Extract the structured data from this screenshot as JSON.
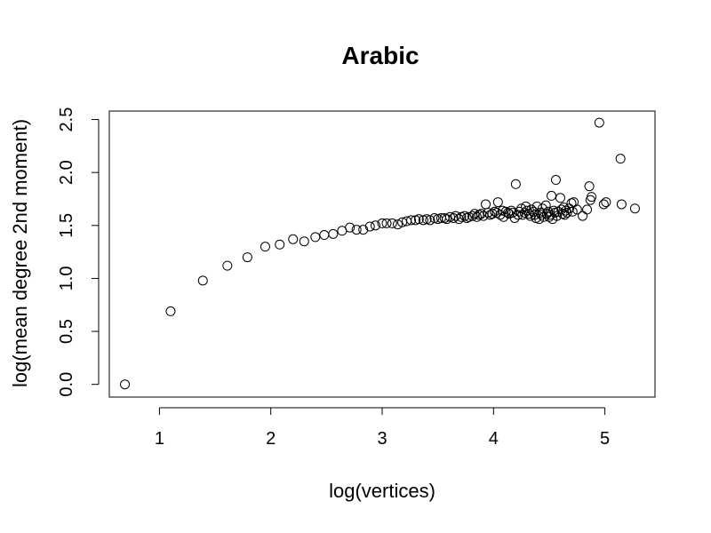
{
  "chart_data": {
    "type": "scatter",
    "title": "Arabic",
    "xlabel": "log(vertices)",
    "ylabel": "log(mean degree 2nd moment)",
    "xlim": [
      0.55,
      5.45
    ],
    "ylim": [
      -0.12,
      2.58
    ],
    "xticks": [
      1,
      2,
      3,
      4,
      5
    ],
    "yticks": [
      0.0,
      0.5,
      1.0,
      1.5,
      2.0,
      2.5
    ],
    "xtick_labels": [
      "1",
      "2",
      "3",
      "4",
      "5"
    ],
    "ytick_labels": [
      "0.0",
      "0.5",
      "1.0",
      "1.5",
      "2.0",
      "2.5"
    ],
    "grid": false,
    "points": [
      [
        0.69,
        0.0
      ],
      [
        1.1,
        0.69
      ],
      [
        1.39,
        0.98
      ],
      [
        1.61,
        1.12
      ],
      [
        1.79,
        1.2
      ],
      [
        1.95,
        1.3
      ],
      [
        2.08,
        1.32
      ],
      [
        2.2,
        1.37
      ],
      [
        2.3,
        1.35
      ],
      [
        2.4,
        1.39
      ],
      [
        2.48,
        1.41
      ],
      [
        2.56,
        1.42
      ],
      [
        2.64,
        1.45
      ],
      [
        2.71,
        1.48
      ],
      [
        2.77,
        1.46
      ],
      [
        2.83,
        1.46
      ],
      [
        2.89,
        1.49
      ],
      [
        2.94,
        1.5
      ],
      [
        3.0,
        1.52
      ],
      [
        3.04,
        1.52
      ],
      [
        3.09,
        1.52
      ],
      [
        3.14,
        1.51
      ],
      [
        3.18,
        1.53
      ],
      [
        3.22,
        1.54
      ],
      [
        3.26,
        1.55
      ],
      [
        3.3,
        1.55
      ],
      [
        3.33,
        1.56
      ],
      [
        3.37,
        1.55
      ],
      [
        3.4,
        1.56
      ],
      [
        3.43,
        1.55
      ],
      [
        3.47,
        1.57
      ],
      [
        3.5,
        1.56
      ],
      [
        3.53,
        1.57
      ],
      [
        3.56,
        1.57
      ],
      [
        3.58,
        1.56
      ],
      [
        3.61,
        1.58
      ],
      [
        3.64,
        1.57
      ],
      [
        3.66,
        1.59
      ],
      [
        3.69,
        1.56
      ],
      [
        3.71,
        1.58
      ],
      [
        3.74,
        1.59
      ],
      [
        3.76,
        1.57
      ],
      [
        3.78,
        1.58
      ],
      [
        3.81,
        1.59
      ],
      [
        3.83,
        1.61
      ],
      [
        3.85,
        1.58
      ],
      [
        3.87,
        1.6
      ],
      [
        3.89,
        1.61
      ],
      [
        3.91,
        1.59
      ],
      [
        3.93,
        1.7
      ],
      [
        3.95,
        1.62
      ],
      [
        3.97,
        1.6
      ],
      [
        3.99,
        1.61
      ],
      [
        4.01,
        1.63
      ],
      [
        4.03,
        1.62
      ],
      [
        4.04,
        1.72
      ],
      [
        4.06,
        1.6
      ],
      [
        4.08,
        1.64
      ],
      [
        4.09,
        1.58
      ],
      [
        4.11,
        1.63
      ],
      [
        4.13,
        1.62
      ],
      [
        4.14,
        1.61
      ],
      [
        4.16,
        1.64
      ],
      [
        4.17,
        1.62
      ],
      [
        4.19,
        1.57
      ],
      [
        4.2,
        1.89
      ],
      [
        4.22,
        1.6
      ],
      [
        4.23,
        1.63
      ],
      [
        4.25,
        1.66
      ],
      [
        4.26,
        1.6
      ],
      [
        4.28,
        1.62
      ],
      [
        4.29,
        1.68
      ],
      [
        4.3,
        1.64
      ],
      [
        4.32,
        1.61
      ],
      [
        4.33,
        1.59
      ],
      [
        4.34,
        1.65
      ],
      [
        4.36,
        1.63
      ],
      [
        4.37,
        1.6
      ],
      [
        4.38,
        1.57
      ],
      [
        4.39,
        1.68
      ],
      [
        4.41,
        1.56
      ],
      [
        4.42,
        1.62
      ],
      [
        4.43,
        1.6
      ],
      [
        4.44,
        1.66
      ],
      [
        4.45,
        1.58
      ],
      [
        4.47,
        1.69
      ],
      [
        4.48,
        1.61
      ],
      [
        4.49,
        1.63
      ],
      [
        4.5,
        1.58
      ],
      [
        4.51,
        1.6
      ],
      [
        4.52,
        1.78
      ],
      [
        4.53,
        1.56
      ],
      [
        4.54,
        1.64
      ],
      [
        4.55,
        1.62
      ],
      [
        4.56,
        1.93
      ],
      [
        4.57,
        1.59
      ],
      [
        4.58,
        1.63
      ],
      [
        4.6,
        1.76
      ],
      [
        4.61,
        1.65
      ],
      [
        4.62,
        1.61
      ],
      [
        4.63,
        1.67
      ],
      [
        4.64,
        1.6
      ],
      [
        4.65,
        1.64
      ],
      [
        4.66,
        1.62
      ],
      [
        4.68,
        1.66
      ],
      [
        4.7,
        1.71
      ],
      [
        4.71,
        1.63
      ],
      [
        4.72,
        1.72
      ],
      [
        4.75,
        1.65
      ],
      [
        4.8,
        1.59
      ],
      [
        4.84,
        1.65
      ],
      [
        4.86,
        1.87
      ],
      [
        4.87,
        1.74
      ],
      [
        4.88,
        1.77
      ],
      [
        4.95,
        2.47
      ],
      [
        4.99,
        1.7
      ],
      [
        5.01,
        1.72
      ],
      [
        5.14,
        2.13
      ],
      [
        5.15,
        1.7
      ],
      [
        5.27,
        1.66
      ]
    ]
  }
}
